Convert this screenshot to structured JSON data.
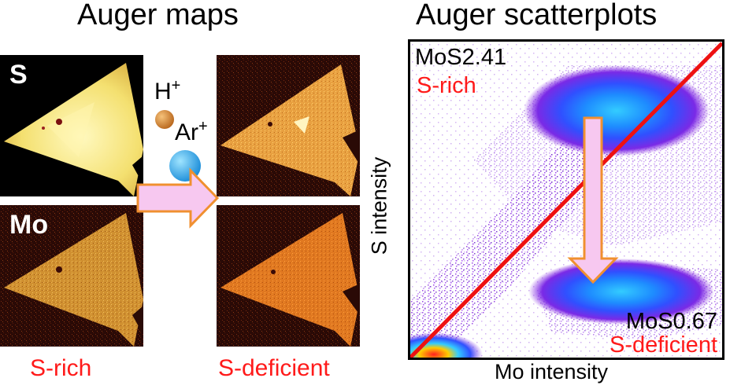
{
  "headings": {
    "maps": "Auger maps",
    "scatter": "Auger scatterplots"
  },
  "maps": {
    "label_s": "S",
    "label_mo": "Mo",
    "caption_left": "S-rich",
    "caption_right": "S-deficient"
  },
  "ions": {
    "h_base": "H",
    "h_charge": "+",
    "ar_base": "Ar",
    "ar_charge": "+",
    "colors": {
      "h": "#d2853a",
      "ar": "#2aa8e8",
      "arrow_fill": "#f7c8f0",
      "arrow_stroke": "#f09030"
    }
  },
  "scatter": {
    "ylabel": "S intensity",
    "xlabel": "Mo intensity",
    "top_formula": "MoS2.41",
    "top_state": "S-rich",
    "bottom_formula": "MoS0.67",
    "bottom_state": "S-deficient",
    "diagonal_color": "#ee1111"
  },
  "colors": {
    "accent_red": "#ff1a1a",
    "scatter_purple": "#8a2be2",
    "scatter_blue": "#1e60ff",
    "scatter_cyan": "#33ccff"
  }
}
